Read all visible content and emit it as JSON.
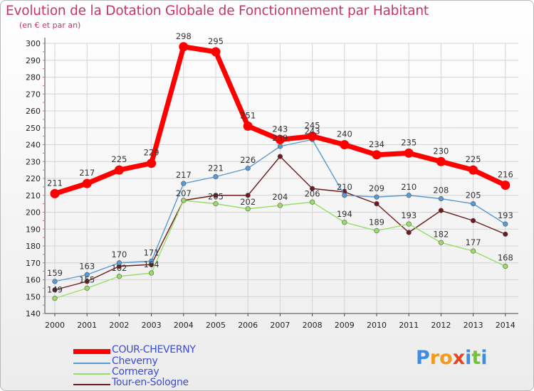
{
  "chart_data": {
    "type": "line",
    "title": "Evolution de la Dotation Globale de Fonctionnement par Habitant",
    "subtitle": "(en € et par an)",
    "xlabel": "",
    "ylabel": "",
    "categories": [
      "2000",
      "2001",
      "2002",
      "2003",
      "2004",
      "2005",
      "2006",
      "2007",
      "2008",
      "2009",
      "2010",
      "2011",
      "2012",
      "2013",
      "2014"
    ],
    "ylim": [
      140,
      300
    ],
    "yticks": [
      140,
      150,
      160,
      170,
      180,
      190,
      200,
      210,
      220,
      230,
      240,
      250,
      260,
      270,
      280,
      290,
      300
    ],
    "grid": true,
    "series": [
      {
        "name": "COUR-CHEVERNY",
        "color": "#ff0000",
        "labels_shown": true,
        "values": [
          211,
          217,
          225,
          229,
          298,
          295,
          251,
          243,
          245,
          240,
          234,
          235,
          230,
          225,
          216
        ]
      },
      {
        "name": "Cheverny",
        "color": "#5a9ad2",
        "labels_shown": true,
        "values": [
          159,
          163,
          170,
          171,
          217,
          221,
          226,
          239,
          243,
          210,
          209,
          210,
          208,
          205,
          193
        ]
      },
      {
        "name": "Cormeray",
        "color": "#99dd66",
        "labels_shown": true,
        "values": [
          149,
          155,
          162,
          164,
          207,
          205,
          202,
          204,
          206,
          194,
          189,
          193,
          182,
          177,
          168
        ]
      },
      {
        "name": "Tour-en-Sologne",
        "color": "#6b1a1e",
        "labels_shown": false,
        "values": [
          154,
          159,
          168,
          169,
          207,
          210,
          210,
          233,
          214,
          212,
          205,
          188,
          201,
          195,
          187
        ]
      }
    ]
  },
  "logo": {
    "text": "Proxiti",
    "letters": [
      "P",
      "r",
      "o",
      "x",
      "i",
      "t",
      "i"
    ],
    "colors": [
      "#3c8ee0",
      "#f29a1f",
      "#f29a1f",
      "#e8431f",
      "#3c8ee0",
      "#74c23a",
      "#3c8ee0"
    ]
  }
}
